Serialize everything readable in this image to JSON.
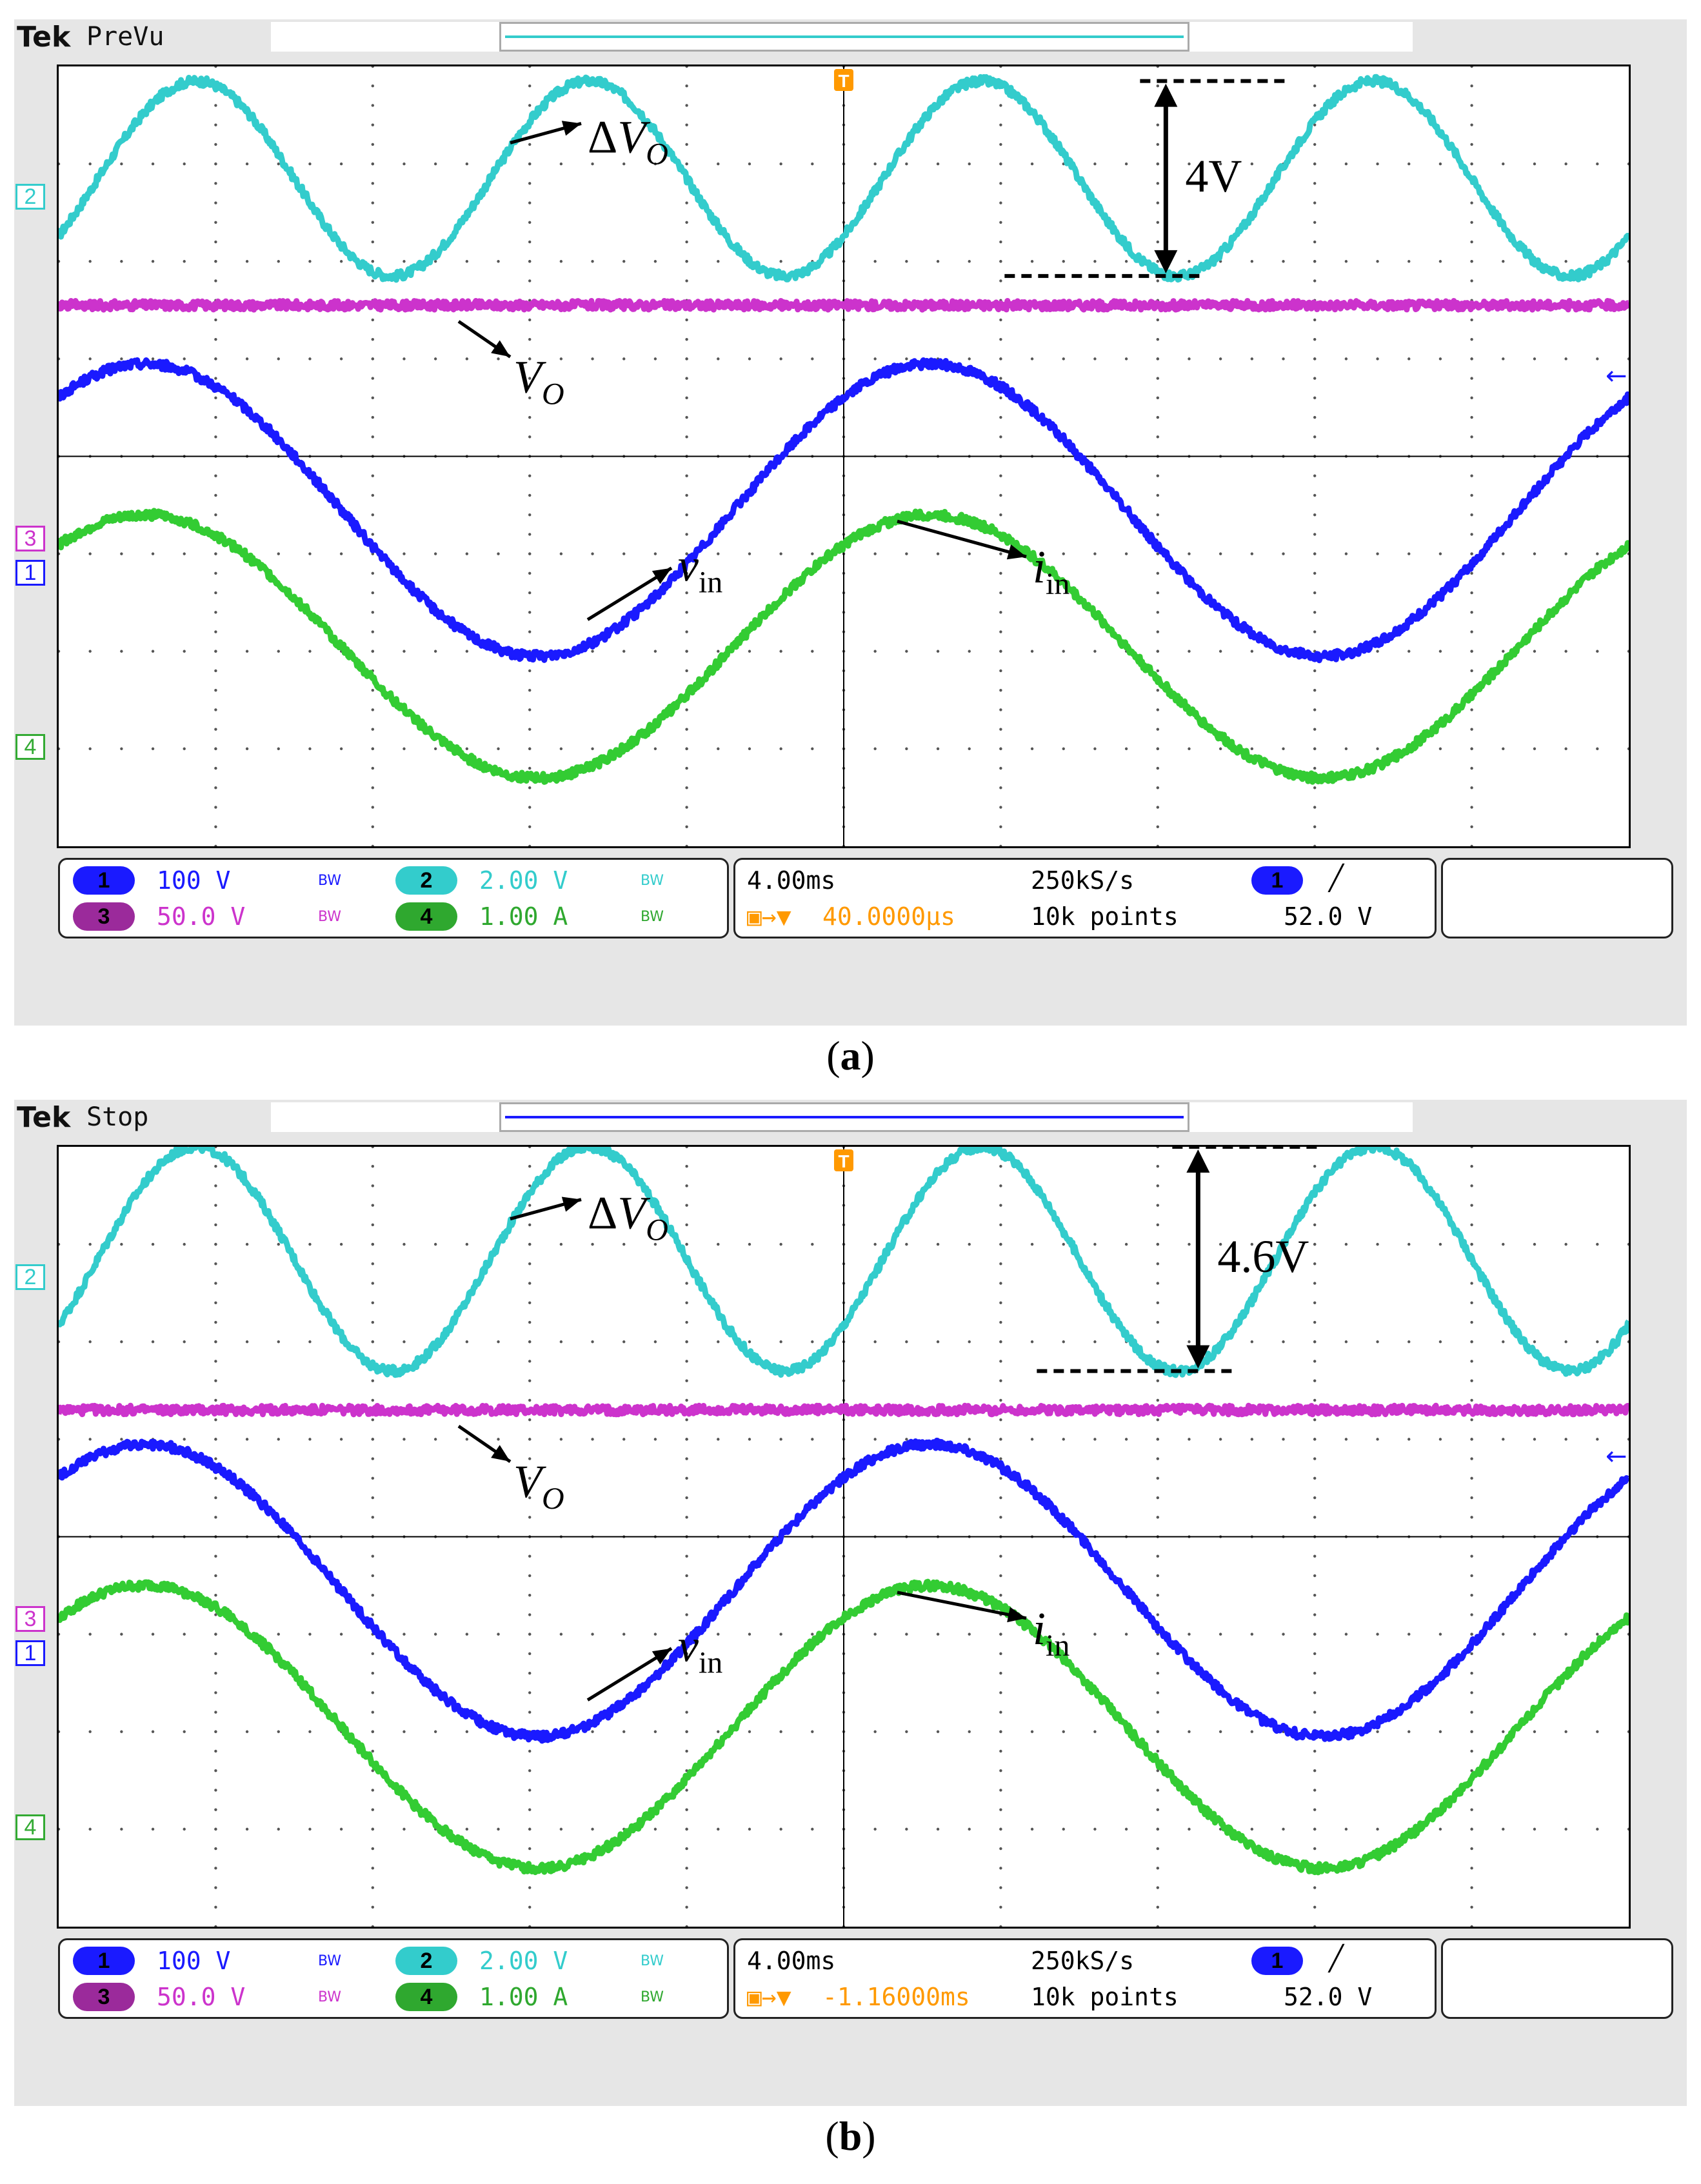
{
  "panels": [
    {
      "id": "a",
      "brand": "Tek",
      "mode": "PreVu",
      "caption_letter": "a",
      "measure_label": "4V",
      "readout": {
        "ch1_scale": "100 V",
        "ch3_scale": "50.0 V",
        "ch2_scale": "2.00 V",
        "ch4_scale": "1.00 A",
        "timebase": "4.00ms",
        "sample_rate": "250kS/s",
        "delay": "40.0000µs",
        "record_length": "10k points",
        "trigger_level": "52.0 V"
      }
    },
    {
      "id": "b",
      "brand": "Tek",
      "mode": "Stop",
      "caption_letter": "b",
      "measure_label": "4.6V",
      "readout": {
        "ch1_scale": "100 V",
        "ch3_scale": "50.0 V",
        "ch2_scale": "2.00 V",
        "ch4_scale": "1.00 A",
        "timebase": "4.00ms",
        "sample_rate": "250kS/s",
        "delay": "-1.16000ms",
        "record_length": "10k points",
        "trigger_level": "52.0 V"
      }
    }
  ],
  "labels": {
    "delta_vo": "Δ",
    "vo_letter": "V",
    "vo_sub": "O",
    "vin_letter": "v",
    "vin_sub": "in",
    "iin_letter": "i",
    "iin_sub": "in",
    "paren_open": "(",
    "paren_close": ")"
  },
  "channel_markers": [
    "1",
    "2",
    "3",
    "4"
  ],
  "trigger_marker": "T",
  "bw_mark": "BW",
  "colors": {
    "ch1": "#1a1aff",
    "ch2": "#33cccc",
    "ch3": "#cc33cc",
    "ch4": "#33cc33",
    "ch4_badge": "#2fa82f",
    "ch3_badge": "#9b2a9b",
    "trigger": "#ff9900",
    "grid_dot": "#555555"
  },
  "chart_data": [
    {
      "type": "line",
      "title": "",
      "xlabel": "",
      "ylabel": "",
      "x_unit": "ms",
      "x_range": [
        0,
        40
      ],
      "y_unit": "div",
      "y_range": [
        -4,
        4
      ],
      "grid": true,
      "series": [
        {
          "name": "ΔVO",
          "channel": 2,
          "color": "#33cccc",
          "period_ms": 10,
          "amplitude_div": 1.0,
          "offset_div": 2.85,
          "phase_ms": 1.0,
          "shape": "sine",
          "peak_to_peak_label": "4V"
        },
        {
          "name": "VO",
          "channel": 3,
          "color": "#cc33cc",
          "period_ms": 0,
          "amplitude_div": 0.0,
          "offset_div": 1.55,
          "shape": "flat"
        },
        {
          "name": "vin",
          "channel": 1,
          "color": "#1a1aff",
          "period_ms": 20,
          "amplitude_div": 1.5,
          "offset_div": -0.55,
          "phase_ms": -2.8,
          "shape": "sine"
        },
        {
          "name": "iin",
          "channel": 4,
          "color": "#33cc33",
          "period_ms": 20,
          "amplitude_div": 1.35,
          "offset_div": -1.95,
          "phase_ms": -2.8,
          "shape": "sine"
        }
      ]
    },
    {
      "type": "line",
      "title": "",
      "xlabel": "",
      "ylabel": "",
      "x_unit": "ms",
      "x_range": [
        0,
        40
      ],
      "y_unit": "div",
      "y_range": [
        -4,
        4
      ],
      "grid": true,
      "series": [
        {
          "name": "ΔVO",
          "channel": 2,
          "color": "#33cccc",
          "period_ms": 10,
          "amplitude_div": 1.15,
          "offset_div": 2.85,
          "phase_ms": 1.0,
          "shape": "sine",
          "peak_to_peak_label": "4.6V"
        },
        {
          "name": "VO",
          "channel": 3,
          "color": "#cc33cc",
          "period_ms": 0,
          "amplitude_div": 0.0,
          "offset_div": 1.3,
          "shape": "flat"
        },
        {
          "name": "vin",
          "channel": 1,
          "color": "#1a1aff",
          "period_ms": 20,
          "amplitude_div": 1.5,
          "offset_div": -0.55,
          "phase_ms": -2.8,
          "shape": "sine"
        },
        {
          "name": "iin",
          "channel": 4,
          "color": "#33cc33",
          "period_ms": 20,
          "amplitude_div": 1.45,
          "offset_div": -1.95,
          "phase_ms": -2.8,
          "shape": "sine"
        }
      ]
    }
  ]
}
